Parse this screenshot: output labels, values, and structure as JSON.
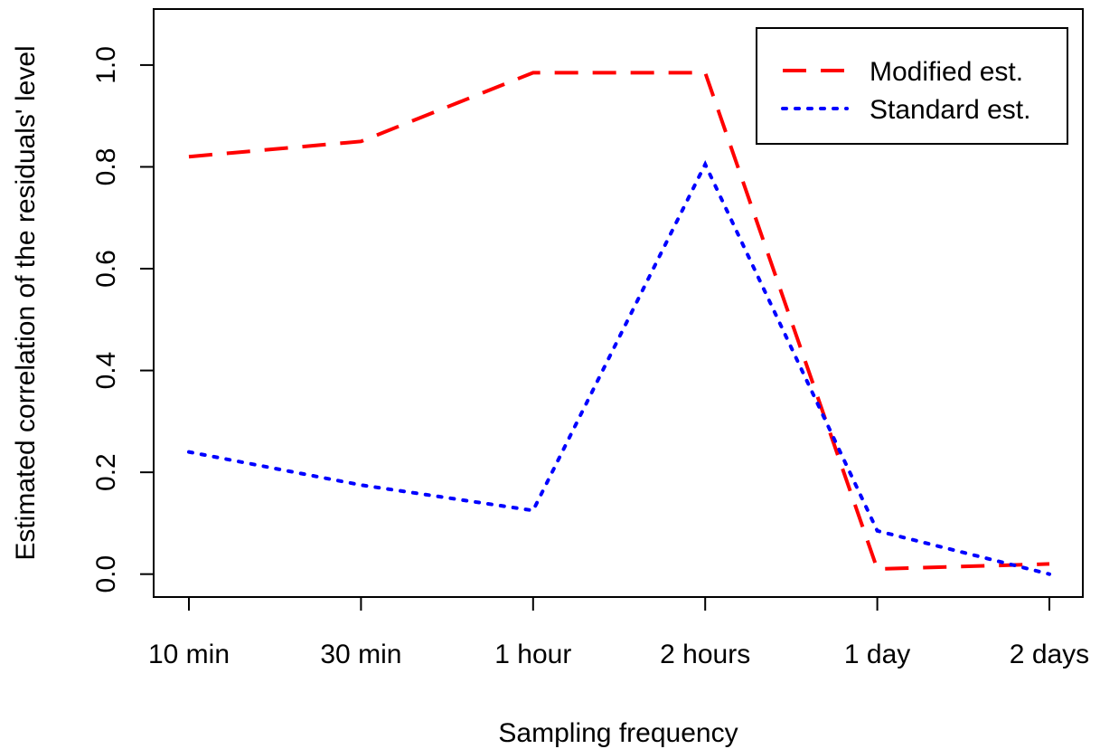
{
  "chart_data": {
    "type": "line",
    "title": "",
    "xlabel": "Sampling frequency",
    "ylabel": "Estimated correlation of the residuals' level",
    "categories": [
      "10 min",
      "30 min",
      "1 hour",
      "2 hours",
      "1 day",
      "2 days"
    ],
    "yticks": [
      "0.0",
      "0.2",
      "0.4",
      "0.6",
      "0.8",
      "1.0"
    ],
    "ylim": [
      -0.045,
      1.11
    ],
    "grid": false,
    "legend_position": "top-right",
    "series": [
      {
        "name": "Modified est.",
        "values": [
          0.82,
          0.85,
          0.985,
          0.985,
          0.01,
          0.02
        ],
        "color": "#ff0000",
        "line_style": "dashed"
      },
      {
        "name": "Standard est.",
        "values": [
          0.24,
          0.175,
          0.125,
          0.805,
          0.085,
          0.0
        ],
        "color": "#0000ff",
        "line_style": "dotted"
      }
    ]
  }
}
